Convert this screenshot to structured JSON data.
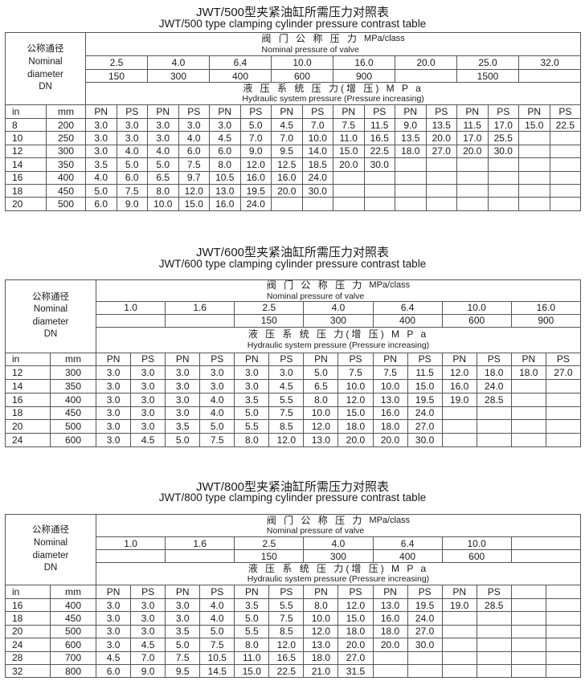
{
  "tables": [
    {
      "title_cn": "JWT/500型夹紧油缸所需压力对照表",
      "title_en": "JWT/500 type clamping cylinder pressure contrast table",
      "header": {
        "dn_cn": "公称通径",
        "dn_en1": "Nominal",
        "dn_en2": "diameter",
        "dn": "DN",
        "valve_cn": "阀 门 公 称 压 力",
        "valve_en": "Nominal pressure of valve",
        "valve_unit": "MPa/class",
        "hyd_cn": "液 压 系 统 压 力(增 压) M P a",
        "hyd_en": "Hydraulic system pressure (Pressure increasing)"
      },
      "pressures": [
        "2.5",
        "4.0",
        "6.4",
        "10.0",
        "16.0",
        "20.0",
        "25.0",
        "32.0"
      ],
      "classes": [
        "150",
        "300",
        "400",
        "600",
        "900",
        "",
        "1500",
        ""
      ],
      "col_labels": [
        "in",
        "mm",
        "PN",
        "PS",
        "PN",
        "PS",
        "PN",
        "PS",
        "PN",
        "PS",
        "PN",
        "PS",
        "PN",
        "PS",
        "PN",
        "PS",
        "PN",
        "PS"
      ],
      "rows": [
        [
          "8",
          "200",
          "3.0",
          "3.0",
          "3.0",
          "3.0",
          "3.0",
          "5.0",
          "4.5",
          "7.0",
          "7.5",
          "11.5",
          "9.0",
          "13.5",
          "11.5",
          "17.0",
          "15.0",
          "22.5"
        ],
        [
          "10",
          "250",
          "3.0",
          "3.0",
          "3.0",
          "4.0",
          "4.5",
          "7.0",
          "7.0",
          "10.0",
          "11.0",
          "16.5",
          "13.5",
          "20.0",
          "17.0",
          "25.5",
          "",
          ""
        ],
        [
          "12",
          "300",
          "3.0",
          "4.0",
          "4.0",
          "6.0",
          "6.0",
          "9.0",
          "9.5",
          "14.0",
          "15.0",
          "22.5",
          "18.0",
          "27.0",
          "20.0",
          "30.0",
          "",
          ""
        ],
        [
          "14",
          "350",
          "3.5",
          "5.0",
          "5.0",
          "7.5",
          "8.0",
          "12.0",
          "12.5",
          "18.5",
          "20.0",
          "30.0",
          "",
          "",
          "",
          "",
          "",
          ""
        ],
        [
          "16",
          "400",
          "4.0",
          "6.0",
          "6.5",
          "9.7",
          "10.5",
          "16.0",
          "16.0",
          "24.0",
          "",
          "",
          "",
          "",
          "",
          "",
          "",
          ""
        ],
        [
          "18",
          "450",
          "5.0",
          "7.5",
          "8.0",
          "12.0",
          "13.0",
          "19.5",
          "20.0",
          "30.0",
          "",
          "",
          "",
          "",
          "",
          "",
          "",
          ""
        ],
        [
          "20",
          "500",
          "6.0",
          "9.0",
          "10.0",
          "15.0",
          "16.0",
          "24.0",
          "",
          "",
          "",
          "",
          "",
          "",
          "",
          "",
          "",
          ""
        ]
      ]
    },
    {
      "title_cn": "JWT/600型夹紧油缸所需压力对照表",
      "title_en": "JWT/600 type clamping cylinder pressure contrast table",
      "header": {
        "dn_cn": "公称通径",
        "dn_en1": "Nominal",
        "dn_en2": "diameter",
        "dn": "DN",
        "valve_cn": "阀 门 公 称 压 力",
        "valve_en": "Nominal pressure of valve",
        "valve_unit": "MPa/class",
        "hyd_cn": "液 压 系 统 压 力(增 压) M P a",
        "hyd_en": "Hydraulic system pressure (Pressure increasing)"
      },
      "pressures": [
        "1.0",
        "1.6",
        "2.5",
        "4.0",
        "6.4",
        "10.0",
        "16.0"
      ],
      "classes": [
        "",
        "",
        "150",
        "300",
        "400",
        "600",
        "900"
      ],
      "col_labels": [
        "in",
        "mm",
        "PN",
        "PS",
        "PN",
        "PS",
        "PN",
        "PS",
        "PN",
        "PS",
        "PN",
        "PS",
        "PN",
        "PS",
        "PN",
        "PS"
      ],
      "rows": [
        [
          "12",
          "300",
          "3.0",
          "3.0",
          "3.0",
          "3.0",
          "3.0",
          "3.0",
          "5.0",
          "7.5",
          "7.5",
          "11.5",
          "12.0",
          "18.0",
          "18.0",
          "27.0"
        ],
        [
          "14",
          "350",
          "3.0",
          "3.0",
          "3.0",
          "3.0",
          "3.0",
          "4.5",
          "6.5",
          "10.0",
          "10.0",
          "15.0",
          "16.0",
          "24.0",
          "",
          ""
        ],
        [
          "16",
          "400",
          "3.0",
          "3.0",
          "3.0",
          "4.0",
          "3.5",
          "5.5",
          "8.0",
          "12.0",
          "13.0",
          "19.5",
          "19.0",
          "28.5",
          "",
          ""
        ],
        [
          "18",
          "450",
          "3.0",
          "3.0",
          "3.0",
          "4.0",
          "5.0",
          "7.5",
          "10.0",
          "15.0",
          "16.0",
          "24.0",
          "",
          "",
          "",
          ""
        ],
        [
          "20",
          "500",
          "3.0",
          "3.0",
          "3.5",
          "5.0",
          "5.5",
          "8.5",
          "12.0",
          "18.0",
          "18.0",
          "27.0",
          "",
          "",
          "",
          ""
        ],
        [
          "24",
          "600",
          "3.0",
          "4.5",
          "5.0",
          "7.5",
          "8.0",
          "12.0",
          "13.0",
          "20.0",
          "20.0",
          "30.0",
          "",
          "",
          "",
          ""
        ]
      ]
    },
    {
      "title_cn": "JWT/800型夹紧油缸所需压力对照表",
      "title_en": "JWT/800 type clamping cylinder pressure contrast table",
      "header": {
        "dn_cn": "公称通径",
        "dn_en1": "Nominal",
        "dn_en2": "diameter",
        "dn": "DN",
        "valve_cn": "阀 门 公 称 压 力",
        "valve_en": "Nominal pressure of valve",
        "valve_unit": "MPa/class",
        "hyd_cn": "液 压 系 统 压 力(增 压) M P a",
        "hyd_en": "Hydraulic system pressure (Pressure increasing)"
      },
      "pressures": [
        "1.0",
        "1.6",
        "2.5",
        "4.0",
        "6.4",
        "10.0",
        ""
      ],
      "classes": [
        "",
        "",
        "150",
        "300",
        "400",
        "600",
        ""
      ],
      "col_labels": [
        "in",
        "mm",
        "PN",
        "PS",
        "PN",
        "PS",
        "PN",
        "PS",
        "PN",
        "PS",
        "PN",
        "PS",
        "PN",
        "PS",
        "",
        ""
      ],
      "rows": [
        [
          "16",
          "400",
          "3.0",
          "3.0",
          "3.0",
          "4.0",
          "3.5",
          "5.5",
          "8.0",
          "12.0",
          "13.0",
          "19.5",
          "19.0",
          "28.5",
          "",
          ""
        ],
        [
          "18",
          "450",
          "3.0",
          "3.0",
          "3.0",
          "4.0",
          "5.0",
          "7.5",
          "10.0",
          "15.0",
          "16.0",
          "24.0",
          "",
          "",
          "",
          ""
        ],
        [
          "20",
          "500",
          "3.0",
          "3.0",
          "3.5",
          "5.0",
          "5.5",
          "8.5",
          "12.0",
          "18.0",
          "18.0",
          "27.0",
          "",
          "",
          "",
          ""
        ],
        [
          "24",
          "600",
          "3.0",
          "4.5",
          "5.0",
          "7.5",
          "8.0",
          "12.0",
          "13.0",
          "20.0",
          "20.0",
          "30.0",
          "",
          "",
          "",
          ""
        ],
        [
          "28",
          "700",
          "4.5",
          "7.0",
          "7.5",
          "10.5",
          "11.0",
          "16.5",
          "18.0",
          "27.0",
          "",
          "",
          "",
          "",
          "",
          ""
        ],
        [
          "32",
          "800",
          "6.0",
          "9.0",
          "9.5",
          "14.5",
          "15.0",
          "22.5",
          "21.0",
          "31.5",
          "",
          "",
          "",
          "",
          "",
          ""
        ]
      ]
    }
  ]
}
